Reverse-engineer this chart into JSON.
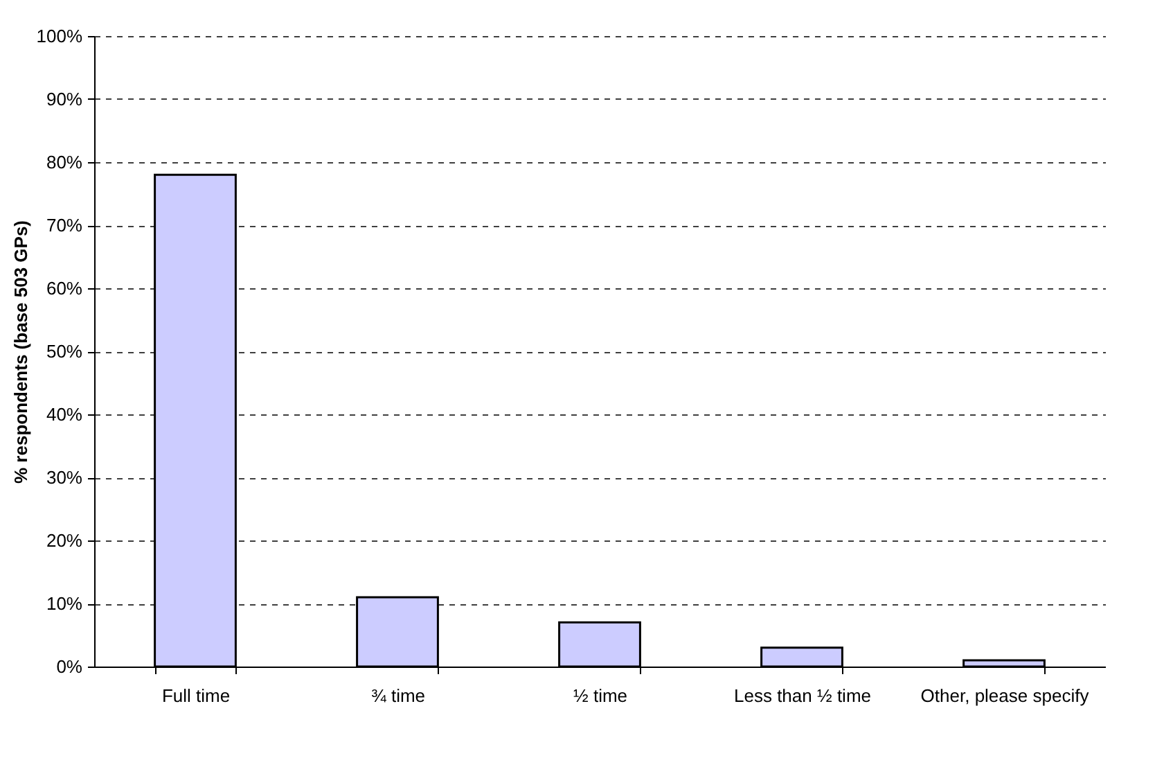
{
  "chart_data": {
    "type": "bar",
    "ylabel": "% respondents  (base 503 GPs)",
    "categories": [
      "Full time",
      "¾ time",
      "½ time",
      "Less than ½ time",
      "Other, please specify"
    ],
    "values": [
      78,
      11,
      7,
      3,
      1
    ],
    "color": "#ccccff",
    "ylim": [
      0,
      100
    ],
    "yticks": [
      {
        "value": 0,
        "label": "0%"
      },
      {
        "value": 10,
        "label": "10%"
      },
      {
        "value": 20,
        "label": "20%"
      },
      {
        "value": 30,
        "label": "30%"
      },
      {
        "value": 40,
        "label": "40%"
      },
      {
        "value": 50,
        "label": "50%"
      },
      {
        "value": 60,
        "label": "60%"
      },
      {
        "value": 70,
        "label": "70%"
      },
      {
        "value": 80,
        "label": "80%"
      },
      {
        "value": 90,
        "label": "90%"
      },
      {
        "value": 100,
        "label": "100%"
      }
    ],
    "grid": "y"
  }
}
